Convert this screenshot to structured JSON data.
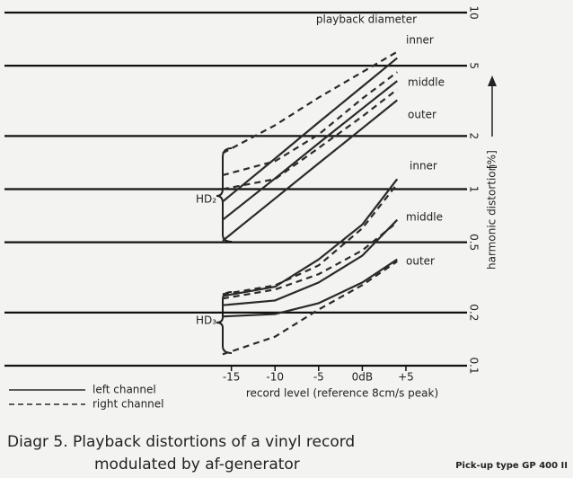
{
  "chart_data": {
    "type": "line",
    "x_label": "record level (reference 8cm/s peak)",
    "y_label": "harmonic distortion",
    "y_unit": "[%]",
    "log_y": true,
    "xlim": [
      -41,
      12
    ],
    "xticks": [
      -15,
      -10,
      -5,
      {
        "value": 0,
        "label": "0dB"
      },
      {
        "value": 5,
        "label": "+5"
      }
    ],
    "ylim": [
      0.1,
      10
    ],
    "yticks": [
      10,
      5,
      2,
      1,
      0.5,
      0.2,
      0.1
    ],
    "grid": true,
    "x": [
      -16,
      -10,
      -5,
      0,
      4
    ],
    "series": [
      {
        "style": "solid",
        "color": "#2a2a2a",
        "values": [
          0.85,
          1.49,
          2.39,
          3.81,
          5.53
        ]
      },
      {
        "style": "solid",
        "color": "#2a2a2a",
        "values": [
          0.67,
          1.15,
          1.82,
          2.86,
          4.1
        ]
      },
      {
        "style": "solid",
        "color": "#2a2a2a",
        "values": [
          0.51,
          0.885,
          1.4,
          2.21,
          3.19
        ]
      },
      {
        "style": "dashed",
        "color": "#2a2a2a",
        "values": [
          1.6,
          2.3,
          3.3,
          4.6,
          6
        ]
      },
      {
        "style": "dashed",
        "color": "#2a2a2a",
        "values": [
          1.2,
          1.44,
          2.04,
          3.26,
          4.6
        ]
      },
      {
        "style": "dashed",
        "color": "#2a2a2a",
        "values": [
          1.0,
          1.14,
          1.71,
          2.58,
          3.67
        ]
      },
      {
        "style": "solid",
        "color": "#2a2a2a",
        "values": [
          0.248,
          0.28,
          0.4,
          0.63,
          1.14
        ]
      },
      {
        "style": "solid",
        "color": "#2a2a2a",
        "values": [
          0.22,
          0.234,
          0.296,
          0.42,
          0.67
        ]
      },
      {
        "style": "solid",
        "color": "#2a2a2a",
        "values": [
          0.19,
          0.196,
          0.226,
          0.296,
          0.4
        ]
      },
      {
        "style": "dashed",
        "color": "#2a2a2a",
        "values": [
          0.254,
          0.285,
          0.37,
          0.6,
          1.07
        ]
      },
      {
        "style": "dashed",
        "color": "#2a2a2a",
        "values": [
          0.24,
          0.27,
          0.33,
          0.45,
          0.65
        ]
      },
      {
        "style": "dashed",
        "color": "#2a2a2a",
        "values": [
          0.116,
          0.146,
          0.208,
          0.286,
          0.39
        ]
      }
    ],
    "legend": [
      {
        "label": "left channel",
        "style": "solid"
      },
      {
        "label": "right channel",
        "style": "dashed"
      }
    ],
    "annotations": {
      "diameter": "playback diameter",
      "hd2": "HD₂",
      "hd3": "HD₃",
      "hd2_inner": "inner",
      "hd2_middle": "middle",
      "hd2_outer": "outer",
      "hd3_inner": "inner",
      "hd3_middle": "middle",
      "hd3_outer": "outer"
    },
    "caption": [
      "Diagr 5.  Playback distortions of a vinyl record",
      "modulated by af-generator"
    ],
    "pickup": "Pick-up type   GP 400 II"
  }
}
